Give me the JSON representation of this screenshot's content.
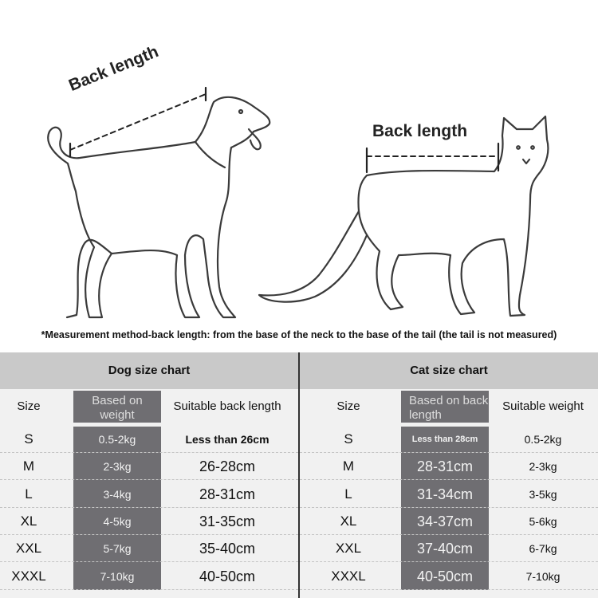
{
  "illustration": {
    "dog_label": "Back length",
    "cat_label": "Back length"
  },
  "note": "*Measurement method-back length: from the base of the neck to the base of the tail (the tail is not measured)",
  "dog_chart": {
    "title": "Dog size chart",
    "headers": [
      "Size",
      "Based on weight",
      "Suitable back length"
    ],
    "rows": [
      {
        "size": "S",
        "weight": "0.5-2kg",
        "length": "Less than 26cm"
      },
      {
        "size": "M",
        "weight": "2-3kg",
        "length": "26-28cm"
      },
      {
        "size": "L",
        "weight": "3-4kg",
        "length": "28-31cm"
      },
      {
        "size": "XL",
        "weight": "4-5kg",
        "length": "31-35cm"
      },
      {
        "size": "XXL",
        "weight": "5-7kg",
        "length": "35-40cm"
      },
      {
        "size": "XXXL",
        "weight": "7-10kg",
        "length": "40-50cm"
      }
    ]
  },
  "cat_chart": {
    "title": "Cat size chart",
    "headers": [
      "Size",
      "Based on back length",
      "Suitable weight"
    ],
    "rows": [
      {
        "size": "S",
        "length": "Less than 28cm",
        "weight": "0.5-2kg"
      },
      {
        "size": "M",
        "length": "28-31cm",
        "weight": "2-3kg"
      },
      {
        "size": "L",
        "length": "31-34cm",
        "weight": "3-5kg"
      },
      {
        "size": "XL",
        "length": "34-37cm",
        "weight": "5-6kg"
      },
      {
        "size": "XXL",
        "length": "37-40cm",
        "weight": "6-7kg"
      },
      {
        "size": "XXXL",
        "length": "40-50cm",
        "weight": "7-10kg"
      }
    ]
  },
  "colors": {
    "header_bg": "#c9c9c9",
    "highlight_column": "#6f6e72",
    "panel_bg": "#f1f1f1"
  }
}
